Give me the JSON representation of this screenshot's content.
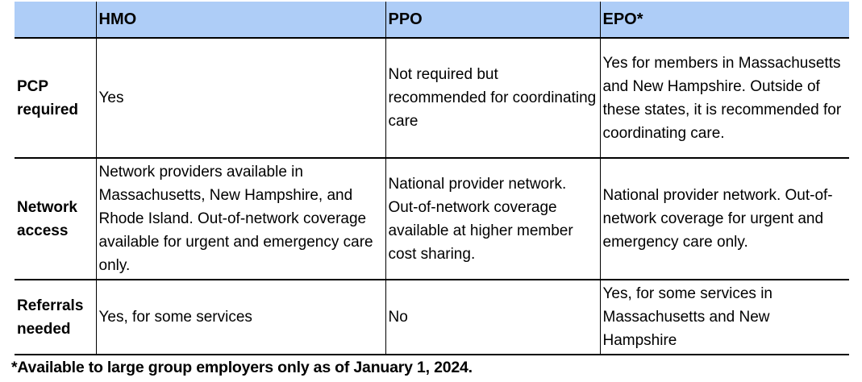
{
  "table": {
    "header_bg": "#AECDF7",
    "columns": [
      "",
      "HMO",
      "PPO",
      "EPO*"
    ],
    "rows": [
      {
        "label": "PCP required",
        "cells": [
          "Yes",
          "Not required but recommended for coordinating care",
          "Yes for members in Massachusetts and New Hampshire. Outside of these states, it is recommended for coordinating care."
        ]
      },
      {
        "label": "Network access",
        "cells": [
          "Network providers available in Massachusetts, New Hampshire, and Rhode Island. Out-of-network coverage available for urgent and emergency care only.",
          "National provider network. Out-of-network coverage available at higher member cost sharing.",
          "National provider network. Out-of-network coverage for urgent and emergency care only."
        ]
      },
      {
        "label": "Referrals needed",
        "cells": [
          "Yes, for some services",
          "No",
          "Yes, for some services in Massachusetts and New Hampshire"
        ]
      }
    ],
    "footnote": "*Available to large group employers only as of January 1, 2024."
  }
}
